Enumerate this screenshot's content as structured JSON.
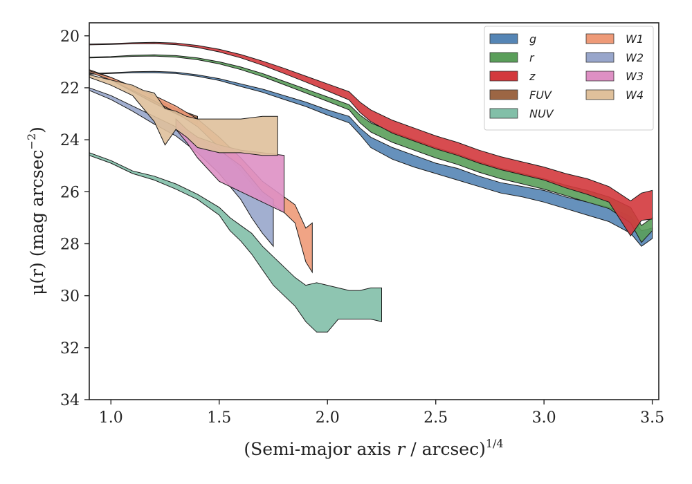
{
  "chart_data": {
    "type": "area",
    "xlabel_main": "(Semi-major axis ",
    "xlabel_var": "r",
    "xlabel_unit": " / arcsec)",
    "xlabel_power": "1/4",
    "ylabel_main": "μ(r) (mag arcsec",
    "ylabel_power": "−2",
    "ylabel_close": ")",
    "xlim": [
      0.9,
      3.53
    ],
    "ylim": [
      34,
      19.5
    ],
    "y_inverted": true,
    "xticks": [
      "1.0",
      "1.5",
      "2.0",
      "2.5",
      "3.0",
      "3.5"
    ],
    "yticks": [
      "20",
      "22",
      "24",
      "26",
      "28",
      "30",
      "32",
      "34"
    ],
    "xtick_values": [
      1.0,
      1.5,
      2.0,
      2.5,
      3.0,
      3.5
    ],
    "ytick_values": [
      20,
      22,
      24,
      26,
      28,
      30,
      32,
      34
    ],
    "legend_position": "top-right",
    "series": [
      {
        "name": "g",
        "color": "#5585b5",
        "x": [
          0.9,
          1.0,
          1.1,
          1.2,
          1.3,
          1.4,
          1.5,
          1.6,
          1.7,
          1.8,
          1.9,
          2.0,
          2.1,
          2.15,
          2.2,
          2.3,
          2.4,
          2.5,
          2.6,
          2.7,
          2.8,
          2.9,
          3.0,
          3.1,
          3.2,
          3.3,
          3.4,
          3.45,
          3.5
        ],
        "y_upper": [
          21.45,
          21.42,
          21.38,
          21.37,
          21.4,
          21.5,
          21.65,
          21.85,
          22.05,
          22.3,
          22.55,
          22.85,
          23.1,
          23.55,
          23.9,
          24.3,
          24.6,
          24.9,
          25.1,
          25.4,
          25.65,
          25.8,
          25.95,
          26.2,
          26.4,
          26.6,
          26.95,
          27.5,
          27.4
        ],
        "y_lower": [
          21.48,
          21.45,
          21.42,
          21.42,
          21.45,
          21.56,
          21.72,
          21.95,
          22.17,
          22.45,
          22.72,
          23.05,
          23.35,
          23.8,
          24.3,
          24.75,
          25.05,
          25.3,
          25.55,
          25.8,
          26.05,
          26.2,
          26.4,
          26.65,
          26.9,
          27.15,
          27.6,
          28.1,
          27.8
        ]
      },
      {
        "name": "r",
        "color": "#5a9e5a",
        "x": [
          0.9,
          1.0,
          1.1,
          1.2,
          1.3,
          1.4,
          1.5,
          1.6,
          1.7,
          1.8,
          1.9,
          2.0,
          2.1,
          2.15,
          2.2,
          2.3,
          2.4,
          2.5,
          2.6,
          2.7,
          2.8,
          2.9,
          3.0,
          3.1,
          3.2,
          3.3,
          3.4,
          3.45,
          3.5
        ],
        "y_upper": [
          20.82,
          20.8,
          20.75,
          20.73,
          20.76,
          20.85,
          21.0,
          21.2,
          21.45,
          21.75,
          22.05,
          22.35,
          22.65,
          23.05,
          23.35,
          23.7,
          24.0,
          24.3,
          24.55,
          24.85,
          25.1,
          25.3,
          25.5,
          25.75,
          25.95,
          26.2,
          26.6,
          27.3,
          27.0
        ],
        "y_lower": [
          20.85,
          20.83,
          20.79,
          20.78,
          20.82,
          20.92,
          21.08,
          21.3,
          21.57,
          21.88,
          22.2,
          22.52,
          22.85,
          23.35,
          23.7,
          24.1,
          24.4,
          24.7,
          24.95,
          25.25,
          25.5,
          25.7,
          25.9,
          26.15,
          26.4,
          26.65,
          27.2,
          27.95,
          27.5
        ]
      },
      {
        "name": "z",
        "color": "#d3393d",
        "x": [
          0.9,
          1.0,
          1.1,
          1.2,
          1.3,
          1.4,
          1.5,
          1.6,
          1.7,
          1.8,
          1.9,
          2.0,
          2.1,
          2.15,
          2.2,
          2.3,
          2.4,
          2.5,
          2.6,
          2.7,
          2.8,
          2.9,
          3.0,
          3.1,
          3.2,
          3.3,
          3.4,
          3.45,
          3.5
        ],
        "y_upper": [
          20.32,
          20.3,
          20.27,
          20.25,
          20.28,
          20.37,
          20.52,
          20.72,
          20.97,
          21.25,
          21.55,
          21.85,
          22.15,
          22.55,
          22.85,
          23.25,
          23.55,
          23.85,
          24.1,
          24.4,
          24.65,
          24.85,
          25.05,
          25.3,
          25.5,
          25.8,
          26.35,
          26.05,
          25.95
        ],
        "y_lower": [
          20.35,
          20.33,
          20.31,
          20.3,
          20.34,
          20.45,
          20.62,
          20.85,
          21.13,
          21.45,
          21.78,
          22.12,
          22.47,
          22.95,
          23.3,
          23.75,
          24.05,
          24.35,
          24.6,
          24.9,
          25.15,
          25.35,
          25.55,
          25.85,
          26.1,
          26.4,
          27.7,
          27.1,
          27.05
        ]
      },
      {
        "name": "FUV",
        "color": "#9c6644",
        "x": [
          0.9,
          1.0,
          1.1,
          1.2,
          1.3,
          1.4
        ],
        "y_upper": [
          21.3,
          21.6,
          22.0,
          22.4,
          22.8,
          23.1
        ],
        "y_lower": [
          21.35,
          21.7,
          22.15,
          22.6,
          23.0,
          23.4
        ]
      },
      {
        "name": "NUV",
        "color": "#82bfa8",
        "x": [
          0.9,
          1.0,
          1.1,
          1.2,
          1.3,
          1.4,
          1.5,
          1.55,
          1.6,
          1.65,
          1.7,
          1.75,
          1.8,
          1.85,
          1.9,
          1.95,
          2.0,
          2.05,
          2.1,
          2.15,
          2.2,
          2.25
        ],
        "y_upper": [
          24.5,
          24.8,
          25.2,
          25.4,
          25.7,
          26.1,
          26.6,
          27.0,
          27.3,
          27.6,
          28.1,
          28.5,
          28.9,
          29.3,
          29.6,
          29.5,
          29.6,
          29.7,
          29.8,
          29.8,
          29.7,
          29.7
        ],
        "y_lower": [
          24.6,
          24.9,
          25.3,
          25.55,
          25.9,
          26.3,
          26.9,
          27.5,
          27.9,
          28.4,
          29.0,
          29.6,
          30.0,
          30.4,
          31.0,
          31.4,
          31.4,
          30.9,
          30.9,
          30.9,
          30.9,
          31.0
        ]
      },
      {
        "name": "W1",
        "color": "#ee9a78",
        "x": [
          0.9,
          1.0,
          1.1,
          1.2,
          1.3,
          1.4,
          1.5,
          1.6,
          1.7,
          1.8,
          1.85,
          1.9,
          1.93
        ],
        "y_upper": [
          21.35,
          21.6,
          21.95,
          22.3,
          22.7,
          23.2,
          23.9,
          24.7,
          25.6,
          26.2,
          26.5,
          27.4,
          27.2
        ],
        "y_lower": [
          21.4,
          21.7,
          22.1,
          22.5,
          22.95,
          23.5,
          24.3,
          25.2,
          26.2,
          26.8,
          27.2,
          28.7,
          29.1
        ]
      },
      {
        "name": "W2",
        "color": "#98a6cb",
        "x": [
          0.9,
          1.0,
          1.1,
          1.2,
          1.3,
          1.4,
          1.5,
          1.6,
          1.65,
          1.7,
          1.75
        ],
        "y_upper": [
          22.0,
          22.3,
          22.7,
          23.1,
          23.5,
          23.9,
          24.4,
          25.0,
          25.5,
          26.0,
          26.3
        ],
        "y_lower": [
          22.1,
          22.45,
          22.9,
          23.4,
          23.85,
          24.5,
          25.3,
          26.3,
          27.0,
          27.6,
          28.1
        ]
      },
      {
        "name": "W3",
        "color": "#de90c4",
        "x": [
          1.3,
          1.35,
          1.4,
          1.5,
          1.6,
          1.7,
          1.8
        ],
        "y_upper": [
          23.2,
          23.6,
          23.9,
          24.2,
          24.4,
          24.5,
          24.6
        ],
        "y_lower": [
          23.6,
          24.1,
          24.7,
          25.6,
          26.0,
          26.4,
          26.8
        ]
      },
      {
        "name": "W4",
        "color": "#dfc09b",
        "x": [
          0.9,
          1.0,
          1.1,
          1.15,
          1.2,
          1.25,
          1.3,
          1.35,
          1.4,
          1.5,
          1.6,
          1.7,
          1.77
        ],
        "y_upper": [
          21.5,
          21.7,
          21.9,
          22.1,
          22.2,
          22.8,
          22.9,
          23.1,
          23.2,
          23.2,
          23.2,
          23.1,
          23.1
        ],
        "y_lower": [
          21.6,
          21.9,
          22.3,
          22.8,
          23.3,
          24.2,
          23.6,
          23.9,
          24.3,
          24.5,
          24.5,
          24.6,
          24.6
        ]
      }
    ]
  }
}
